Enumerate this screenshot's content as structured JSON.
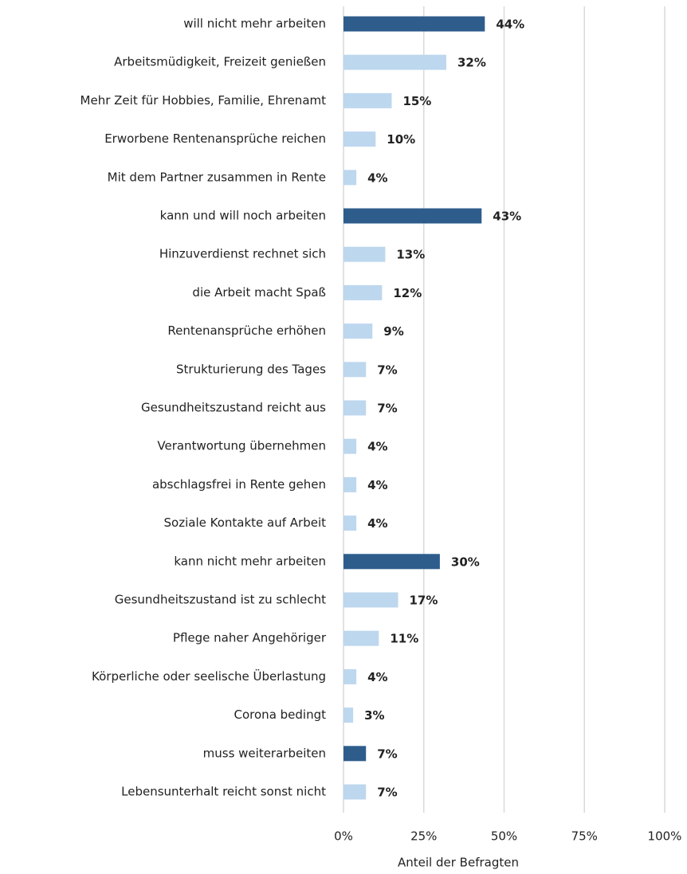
{
  "chart_data": {
    "type": "bar",
    "orientation": "horizontal",
    "x_label": "Anteil der Befragten",
    "categories": [
      "will nicht mehr arbeiten",
      "Arbeitsmüdigkeit, Freizeit genießen",
      "Mehr Zeit für Hobbies, Familie, Ehrenamt",
      "Erworbene Rentenansprüche reichen",
      "Mit dem Partner zusammen in Rente",
      "kann und will noch arbeiten",
      "Hinzuverdienst rechnet sich",
      "die Arbeit macht Spaß",
      "Rentenansprüche erhöhen",
      "Strukturierung des Tages",
      "Gesundheitszustand reicht aus",
      "Verantwortung übernehmen",
      "abschlagsfrei in Rente gehen",
      "Soziale Kontakte auf Arbeit",
      "kann nicht mehr arbeiten",
      "Gesundheitszustand ist zu schlecht",
      "Pflege naher Angehöriger",
      "Körperliche oder seelische Überlastung",
      "Corona bedingt",
      "muss weiterarbeiten",
      "Lebensunterhalt reicht sonst nicht"
    ],
    "values": [
      44,
      32,
      15,
      10,
      4,
      43,
      13,
      12,
      9,
      7,
      7,
      4,
      4,
      4,
      30,
      17,
      11,
      4,
      3,
      7,
      7
    ],
    "value_labels": [
      "44%",
      "32%",
      "15%",
      "10%",
      "4%",
      "43%",
      "13%",
      "12%",
      "9%",
      "7%",
      "7%",
      "4%",
      "4%",
      "4%",
      "30%",
      "17%",
      "11%",
      "4%",
      "3%",
      "7%",
      "7%"
    ],
    "colors": [
      "#2e5d8c",
      "#bdd7ee",
      "#bdd7ee",
      "#bdd7ee",
      "#bdd7ee",
      "#2e5d8c",
      "#bdd7ee",
      "#bdd7ee",
      "#bdd7ee",
      "#bdd7ee",
      "#bdd7ee",
      "#bdd7ee",
      "#bdd7ee",
      "#bdd7ee",
      "#2e5d8c",
      "#bdd7ee",
      "#bdd7ee",
      "#bdd7ee",
      "#bdd7ee",
      "#2e5d8c",
      "#bdd7ee"
    ],
    "xlim": [
      0,
      100
    ],
    "xticks": [
      {
        "value": 0,
        "label": "0%"
      },
      {
        "value": 25,
        "label": "25%"
      },
      {
        "value": 50,
        "label": "50%"
      },
      {
        "value": 75,
        "label": "75%"
      },
      {
        "value": 100,
        "label": "100%"
      }
    ],
    "grid": true
  }
}
